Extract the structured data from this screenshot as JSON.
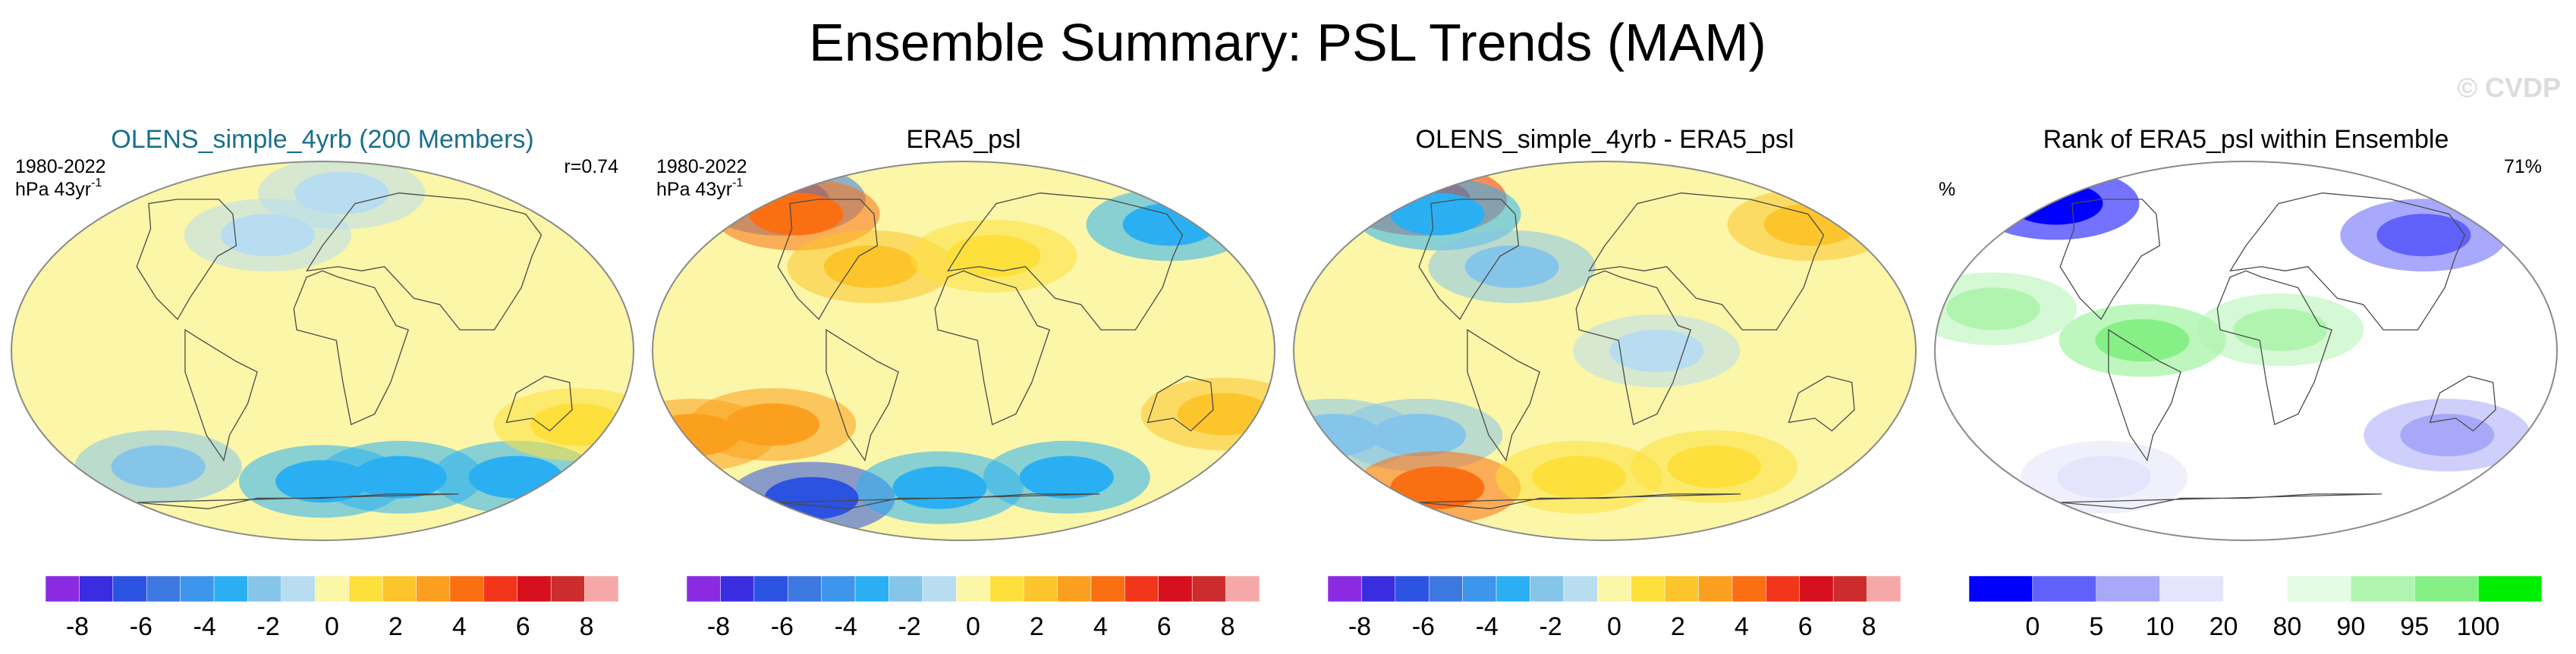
{
  "figure": {
    "title": "Ensemble Summary: PSL Trends (MAM)",
    "watermark": "© CVDP"
  },
  "colors": {
    "title_teal": "#1a6f8e",
    "map_outline": "#8a8a8a",
    "coast": "#4a4a4a"
  },
  "chart_data": [
    {
      "type": "heatmap",
      "title": "OLENS_simple_4yrb (200 Members)",
      "left_label_line1": "1980-2022",
      "left_label_line2": "hPa 43yr",
      "left_label_sup": "-1",
      "right_label": "r=0.74",
      "colorbar": {
        "colors": [
          "#8a2be2",
          "#3a2de0",
          "#2b52e0",
          "#3c78e0",
          "#3d95ec",
          "#2ab0f2",
          "#86c5ea",
          "#b8ddf0",
          "#fbf6a8",
          "#fde03c",
          "#fcc52b",
          "#fba01e",
          "#fb6f13",
          "#f2361b",
          "#d6101c",
          "#cc2c2c",
          "#f6a8a8"
        ],
        "ticks": [
          "-8",
          "-6",
          "-4",
          "-2",
          "0",
          "2",
          "4",
          "6",
          "8"
        ],
        "range": [
          -9,
          9
        ]
      },
      "regions": [
        {
          "lon": 0,
          "lat": -62,
          "value": -3
        },
        {
          "lon": -120,
          "lat": -55,
          "value": -2
        },
        {
          "lon": 60,
          "lat": -60,
          "value": -3
        },
        {
          "lon": 150,
          "lat": -60,
          "value": -3
        },
        {
          "lon": 20,
          "lat": 75,
          "value": -1
        },
        {
          "lon": -40,
          "lat": 55,
          "value": -1
        },
        {
          "lon": 160,
          "lat": -35,
          "value": 1
        }
      ]
    },
    {
      "type": "heatmap",
      "title": "ERA5_psl",
      "left_label_line1": "1980-2022",
      "left_label_line2": "hPa 43yr",
      "left_label_sup": "-1",
      "colorbar": {
        "colors": [
          "#8a2be2",
          "#3a2de0",
          "#2b52e0",
          "#3c78e0",
          "#3d95ec",
          "#2ab0f2",
          "#86c5ea",
          "#b8ddf0",
          "#fbf6a8",
          "#fde03c",
          "#fcc52b",
          "#fba01e",
          "#fb6f13",
          "#f2361b",
          "#d6101c",
          "#cc2c2c",
          "#f6a8a8"
        ],
        "ticks": [
          "-8",
          "-6",
          "-4",
          "-2",
          "0",
          "2",
          "4",
          "6",
          "8"
        ],
        "range": [
          -9,
          9
        ]
      },
      "regions": [
        {
          "lon": -175,
          "lat": 72,
          "value": -5
        },
        {
          "lon": 160,
          "lat": 60,
          "value": -3
        },
        {
          "lon": -140,
          "lat": 65,
          "value": 4
        },
        {
          "lon": -60,
          "lat": 40,
          "value": 2
        },
        {
          "lon": -175,
          "lat": -40,
          "value": 3
        },
        {
          "lon": -120,
          "lat": -35,
          "value": 3
        },
        {
          "lon": -140,
          "lat": -70,
          "value": -6
        },
        {
          "lon": 80,
          "lat": -60,
          "value": -3
        },
        {
          "lon": -20,
          "lat": -65,
          "value": -3
        },
        {
          "lon": 160,
          "lat": -30,
          "value": 2
        },
        {
          "lon": 20,
          "lat": 45,
          "value": 1
        }
      ]
    },
    {
      "type": "heatmap",
      "title": "OLENS_simple_4yrb - ERA5_psl",
      "colorbar": {
        "colors": [
          "#8a2be2",
          "#3a2de0",
          "#2b52e0",
          "#3c78e0",
          "#3d95ec",
          "#2ab0f2",
          "#86c5ea",
          "#b8ddf0",
          "#fbf6a8",
          "#fde03c",
          "#fcc52b",
          "#fba01e",
          "#fb6f13",
          "#f2361b",
          "#d6101c",
          "#cc2c2c",
          "#f6a8a8"
        ],
        "ticks": [
          "-8",
          "-6",
          "-4",
          "-2",
          "0",
          "2",
          "4",
          "6",
          "8"
        ],
        "range": [
          -9,
          9
        ]
      },
      "regions": [
        {
          "lon": -175,
          "lat": 72,
          "value": 5
        },
        {
          "lon": 160,
          "lat": 60,
          "value": 2
        },
        {
          "lon": -140,
          "lat": 65,
          "value": -3
        },
        {
          "lon": -60,
          "lat": 40,
          "value": -2
        },
        {
          "lon": -175,
          "lat": -40,
          "value": -2
        },
        {
          "lon": -120,
          "lat": -40,
          "value": -2
        },
        {
          "lon": -140,
          "lat": -65,
          "value": 4
        },
        {
          "lon": 80,
          "lat": -55,
          "value": 1
        },
        {
          "lon": -20,
          "lat": -60,
          "value": 1
        },
        {
          "lon": 30,
          "lat": 0,
          "value": -1
        }
      ]
    },
    {
      "type": "heatmap",
      "title": "Rank of ERA5_psl within Ensemble",
      "left_label_line1": "%",
      "right_label": "71%",
      "colorbar": {
        "colors": [
          "#0000ff",
          "#6060fa",
          "#a8a8f8",
          "#e4e4fc",
          "#ffffff",
          "#e4fce4",
          "#b0f4b0",
          "#86f086",
          "#00ee00"
        ],
        "ticks": [
          "0",
          "5",
          "10",
          "20",
          "80",
          "90",
          "95",
          "100"
        ]
      },
      "regions": [
        {
          "lon": -175,
          "lat": 70,
          "category": 0
        },
        {
          "lon": 130,
          "lat": 55,
          "category": 1
        },
        {
          "lon": -60,
          "lat": 5,
          "category": 7
        },
        {
          "lon": 20,
          "lat": 10,
          "category": 6
        },
        {
          "lon": -150,
          "lat": 20,
          "category": 6
        },
        {
          "lon": 130,
          "lat": -40,
          "category": 2
        },
        {
          "lon": -110,
          "lat": -60,
          "category": 3
        }
      ]
    }
  ]
}
